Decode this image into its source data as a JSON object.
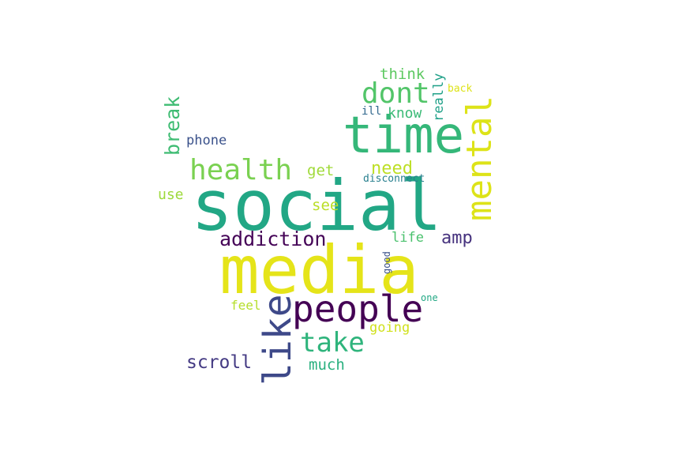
{
  "words": [
    {
      "text": "social",
      "color": "#22a785"
    },
    {
      "text": "media",
      "color": "#e5e419"
    },
    {
      "text": "time",
      "color": "#35b779"
    },
    {
      "text": "mental",
      "color": "#dde318"
    },
    {
      "text": "people",
      "color": "#440154"
    },
    {
      "text": "like",
      "color": "#3e4989"
    },
    {
      "text": "health",
      "color": "#7ad151"
    },
    {
      "text": "dont",
      "color": "#52c569"
    },
    {
      "text": "take",
      "color": "#2fb47c"
    },
    {
      "text": "addiction",
      "color": "#450457"
    },
    {
      "text": "break",
      "color": "#3fbc73"
    },
    {
      "text": "scroll",
      "color": "#443a83"
    },
    {
      "text": "amp",
      "color": "#46327e"
    },
    {
      "text": "need",
      "color": "#bddf26"
    },
    {
      "text": "much",
      "color": "#2ab07f"
    },
    {
      "text": "think",
      "color": "#5ec962"
    },
    {
      "text": "know",
      "color": "#3aba76"
    },
    {
      "text": "really",
      "color": "#1fa088"
    },
    {
      "text": "get",
      "color": "#a0da39"
    },
    {
      "text": "see",
      "color": "#bade28"
    },
    {
      "text": "phone",
      "color": "#3b528b"
    },
    {
      "text": "use",
      "color": "#9dd93b"
    },
    {
      "text": "life",
      "color": "#4ac16d"
    },
    {
      "text": "going",
      "color": "#d0e11c"
    },
    {
      "text": "feel",
      "color": "#b5de2b"
    },
    {
      "text": "disconnect",
      "color": "#277f8e"
    },
    {
      "text": "good",
      "color": "#3b528b"
    },
    {
      "text": "one",
      "color": "#22a884"
    },
    {
      "text": "back",
      "color": "#dde318"
    },
    {
      "text": "ill",
      "color": "#31688e"
    }
  ]
}
